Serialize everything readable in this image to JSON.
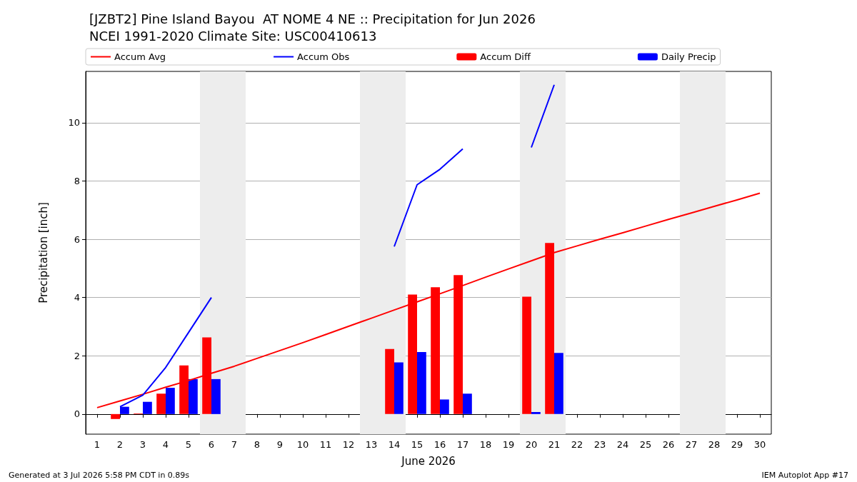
{
  "chart_data": {
    "type": "bar",
    "title": "[JZBT2] Pine Island Bayou  AT NOME 4 NE :: Precipitation for Jun 2026",
    "subtitle": "NCEI 1991-2020 Climate Site: USC00410613",
    "xlabel": "June 2026",
    "ylabel": "Precipitation [inch]",
    "x": [
      1,
      2,
      3,
      4,
      5,
      6,
      7,
      8,
      9,
      10,
      11,
      12,
      13,
      14,
      15,
      16,
      17,
      18,
      19,
      20,
      21,
      22,
      23,
      24,
      25,
      26,
      27,
      28,
      29,
      30
    ],
    "series": [
      {
        "name": "Accum Avg",
        "type": "line",
        "color": "#ff0000",
        "values": [
          0.22,
          0.45,
          0.68,
          0.92,
          1.15,
          1.4,
          1.64,
          1.91,
          2.18,
          2.45,
          2.73,
          3.01,
          3.29,
          3.57,
          3.85,
          4.13,
          4.41,
          4.7,
          4.98,
          5.26,
          5.54,
          5.77,
          6.0,
          6.22,
          6.45,
          6.68,
          6.9,
          7.13,
          7.35,
          7.58
        ]
      },
      {
        "name": "Accum Obs",
        "type": "line",
        "color": "#0000ff",
        "values": [
          null,
          0.25,
          0.65,
          1.6,
          2.8,
          4.0,
          null,
          null,
          null,
          null,
          null,
          null,
          null,
          5.75,
          7.87,
          8.4,
          9.1,
          null,
          null,
          9.15,
          11.3,
          null,
          null,
          null,
          null,
          null,
          null,
          null,
          null,
          null
        ]
      },
      {
        "name": "Accum Diff",
        "color": "#ff0000",
        "values": [
          null,
          -0.17,
          0.02,
          0.7,
          1.67,
          2.63,
          null,
          null,
          null,
          null,
          null,
          null,
          null,
          2.23,
          4.1,
          4.35,
          4.77,
          null,
          null,
          4.03,
          5.87,
          null,
          null,
          null,
          null,
          null,
          null,
          null,
          null,
          null
        ]
      },
      {
        "name": "Daily Precip",
        "color": "#0000ff",
        "values": [
          null,
          0.25,
          0.42,
          0.9,
          1.2,
          1.2,
          null,
          null,
          null,
          null,
          null,
          null,
          null,
          1.77,
          2.13,
          0.5,
          0.7,
          null,
          null,
          0.07,
          2.1,
          null,
          null,
          null,
          null,
          null,
          null,
          null,
          null,
          null
        ]
      }
    ],
    "xlim": [
      0.5,
      30.5
    ],
    "xticks": [
      1,
      2,
      3,
      4,
      5,
      6,
      7,
      8,
      9,
      10,
      11,
      12,
      13,
      14,
      15,
      16,
      17,
      18,
      19,
      20,
      21,
      22,
      23,
      24,
      25,
      26,
      27,
      28,
      29,
      30
    ],
    "ylim": [
      -0.69,
      11.76
    ],
    "yticks": [
      0,
      2,
      4,
      6,
      8,
      10
    ],
    "bands": [
      {
        "axis": "x",
        "from": 5.5,
        "to": 7.5,
        "color": "#ededed"
      },
      {
        "axis": "x",
        "from": 12.5,
        "to": 14.5,
        "color": "#ededed"
      },
      {
        "axis": "x",
        "from": 19.5,
        "to": 21.5,
        "color": "#ededed"
      },
      {
        "axis": "x",
        "from": 26.5,
        "to": 28.5,
        "color": "#ededed"
      }
    ],
    "grid": "y",
    "legend": "top",
    "annotations": [
      "Generated at 3 Jul 2026 5:58 PM CDT in 0.89s",
      "IEM Autoplot App #17"
    ]
  }
}
